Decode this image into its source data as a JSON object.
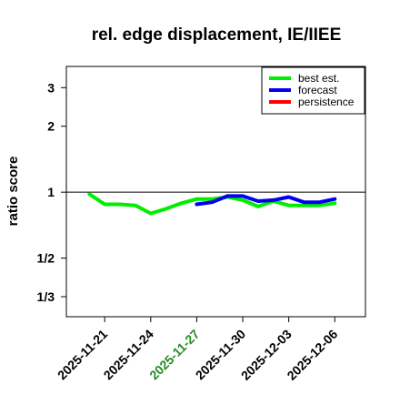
{
  "chart_data": {
    "type": "line",
    "title": "rel. edge displacement, IE/IIEE",
    "ylabel": "ratio score",
    "xlabel": "",
    "y_scale": "log",
    "y_ticks": [
      {
        "value": 3,
        "label": "3"
      },
      {
        "value": 2,
        "label": "2"
      },
      {
        "value": 1,
        "label": "1"
      },
      {
        "value": 0.5,
        "label": "1/2"
      },
      {
        "value": 0.3333,
        "label": "1/3"
      }
    ],
    "ylim": [
      0.27,
      3.75
    ],
    "x_ticks": [
      {
        "value": "2025-11-21",
        "label": "2025-11-21",
        "color": "#000000"
      },
      {
        "value": "2025-11-24",
        "label": "2025-11-24",
        "color": "#000000"
      },
      {
        "value": "2025-11-27",
        "label": "2025-11-27",
        "color": "#228B22"
      },
      {
        "value": "2025-11-30",
        "label": "2025-11-30",
        "color": "#000000"
      },
      {
        "value": "2025-12-03",
        "label": "2025-12-03",
        "color": "#000000"
      },
      {
        "value": "2025-12-06",
        "label": "2025-12-06",
        "color": "#000000"
      }
    ],
    "xlim": [
      "2025-11-18T12:00",
      "2025-12-08"
    ],
    "reference_line": 1,
    "legend_position": "top-right",
    "series": [
      {
        "name": "best est.",
        "color": "#00ee00",
        "points": [
          {
            "x": "2025-11-20",
            "y": 0.98
          },
          {
            "x": "2025-11-21",
            "y": 0.88
          },
          {
            "x": "2025-11-22",
            "y": 0.88
          },
          {
            "x": "2025-11-23",
            "y": 0.87
          },
          {
            "x": "2025-11-24",
            "y": 0.8
          },
          {
            "x": "2025-11-25",
            "y": 0.84
          },
          {
            "x": "2025-11-26",
            "y": 0.89
          },
          {
            "x": "2025-11-27",
            "y": 0.93
          },
          {
            "x": "2025-11-28",
            "y": 0.93
          },
          {
            "x": "2025-11-29",
            "y": 0.95
          },
          {
            "x": "2025-11-30",
            "y": 0.92
          },
          {
            "x": "2025-12-01",
            "y": 0.86
          },
          {
            "x": "2025-12-02",
            "y": 0.91
          },
          {
            "x": "2025-12-03",
            "y": 0.87
          },
          {
            "x": "2025-12-04",
            "y": 0.87
          },
          {
            "x": "2025-12-05",
            "y": 0.87
          },
          {
            "x": "2025-12-06",
            "y": 0.89
          }
        ]
      },
      {
        "name": "forecast",
        "color": "#0000ee",
        "points": [
          {
            "x": "2025-11-27",
            "y": 0.88
          },
          {
            "x": "2025-11-28",
            "y": 0.9
          },
          {
            "x": "2025-11-29",
            "y": 0.96
          },
          {
            "x": "2025-11-30",
            "y": 0.96
          },
          {
            "x": "2025-12-01",
            "y": 0.91
          },
          {
            "x": "2025-12-02",
            "y": 0.92
          },
          {
            "x": "2025-12-03",
            "y": 0.95
          },
          {
            "x": "2025-12-04",
            "y": 0.9
          },
          {
            "x": "2025-12-05",
            "y": 0.9
          },
          {
            "x": "2025-12-06",
            "y": 0.93
          }
        ]
      },
      {
        "name": "persistence",
        "color": "#ff0000",
        "points": []
      }
    ]
  }
}
